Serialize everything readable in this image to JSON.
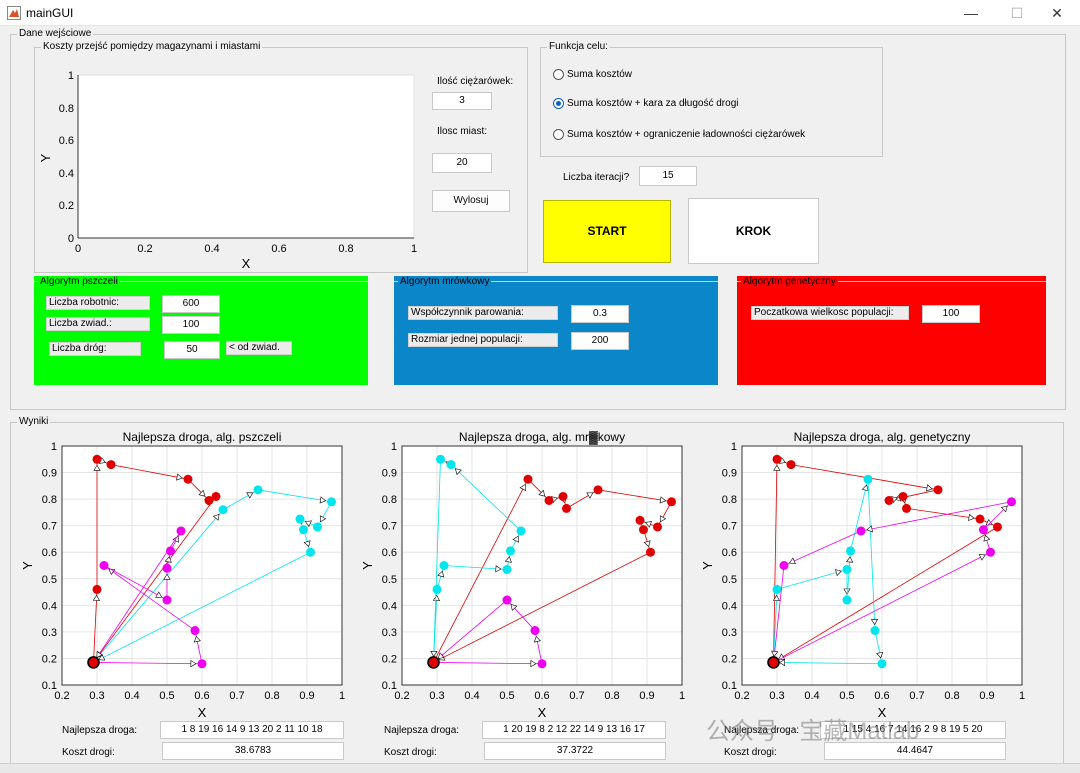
{
  "window": {
    "title": "mainGUI",
    "minimize": "—",
    "maximize": "☐",
    "close": "✕"
  },
  "input_group": {
    "title": "Dane wejściowe",
    "cost_panel": {
      "title": "Koszty przejść pomiędzy magazynami i miastami",
      "xlabel": "X",
      "ylabel": "Y",
      "xticks": [
        "0",
        "0.2",
        "0.4",
        "0.6",
        "0.8",
        "1"
      ],
      "yticks": [
        "0",
        "0.2",
        "0.4",
        "0.6",
        "0.8",
        "1"
      ]
    },
    "trucks_label": "Ilość ciężarówek:",
    "trucks_value": "3",
    "cities_label": "Ilosc miast:",
    "cities_value": "20",
    "draw_button": "Wylosuj",
    "objective": {
      "title": "Funkcja celu:",
      "options": [
        "Suma kosztów",
        "Suma kosztów + kara za długość drogi",
        "Suma kosztów + ograniczenie ładowności ciężarówek"
      ],
      "selected": 1
    },
    "iterations_label": "Liczba iteracji?",
    "iterations_value": "15",
    "start_button": "START",
    "step_button": "KROK"
  },
  "bees": {
    "title": "Algorytm pszczeli",
    "color": "#00ff00",
    "workers_label": "Liczba robotnic:",
    "workers_value": "600",
    "scouts_label": "Liczba zwiad.:",
    "scouts_value": "100",
    "paths_label": "Liczba dróg:",
    "paths_value": "50",
    "paths_note": "< od zwiad."
  },
  "ants": {
    "title": "Algorytm mrówkowy",
    "color": "#0b86c8",
    "evap_label": "Współczynnik parowania:",
    "evap_value": "0.3",
    "pop_label": "Rozmiar jednej populacji:",
    "pop_value": "200"
  },
  "genetic": {
    "title": "Algorytm genetyczny",
    "color": "#ff0000",
    "pop_label": "Poczatkowa wielkosc populacji:",
    "pop_value": "100"
  },
  "results": {
    "title": "Wyniki",
    "best_label": "Najlepsza droga:",
    "cost_label": "Koszt drogi:",
    "charts": [
      {
        "title": "Najlepsza droga, alg. pszczeli",
        "best_path": "1  8  19  16  14   9  13  20   2  11  10  18",
        "cost": "38.6783"
      },
      {
        "title": "Najlepsza droga, alg. mr▓kowy",
        "best_path": "1  20  19   8   2  12  22  14   9  13  16  17",
        "cost": "37.3722"
      },
      {
        "title": "Najlepsza droga, alg. genetyczny",
        "best_path": "1  15   4  16   7  14  16   2   9   8  19   5  20",
        "cost": "44.4647"
      }
    ]
  },
  "watermark": "公众号 · 宝藏Matlab",
  "chart_data": [
    {
      "type": "line",
      "title": "Najlepsza droga, alg. pszczeli",
      "xlabel": "X",
      "ylabel": "Y",
      "xlim": [
        0.2,
        1
      ],
      "ylim": [
        0.1,
        1
      ],
      "grid": true,
      "xticks": [
        0.2,
        0.3,
        0.4,
        0.5,
        0.6,
        0.7,
        0.8,
        0.9,
        1
      ],
      "yticks": [
        0.1,
        0.2,
        0.3,
        0.4,
        0.5,
        0.6,
        0.7,
        0.8,
        0.9,
        1
      ],
      "depot": [
        0.29,
        0.185
      ],
      "series": [
        {
          "color": "#e00000",
          "points": [
            [
              0.29,
              0.185
            ],
            [
              0.3,
              0.46
            ],
            [
              0.3,
              0.95
            ],
            [
              0.34,
              0.93
            ],
            [
              0.56,
              0.875
            ],
            [
              0.62,
              0.795
            ],
            [
              0.64,
              0.81
            ],
            [
              0.29,
              0.185
            ]
          ]
        },
        {
          "color": "#00e5ee",
          "points": [
            [
              0.29,
              0.185
            ],
            [
              0.66,
              0.76
            ],
            [
              0.76,
              0.835
            ],
            [
              0.97,
              0.79
            ],
            [
              0.93,
              0.695
            ],
            [
              0.88,
              0.725
            ],
            [
              0.89,
              0.685
            ],
            [
              0.91,
              0.6
            ],
            [
              0.29,
              0.185
            ]
          ]
        },
        {
          "color": "#ee00ee",
          "points": [
            [
              0.29,
              0.185
            ],
            [
              0.6,
              0.18
            ],
            [
              0.58,
              0.305
            ],
            [
              0.32,
              0.55
            ],
            [
              0.5,
              0.42
            ],
            [
              0.5,
              0.54
            ],
            [
              0.51,
              0.605
            ],
            [
              0.54,
              0.68
            ],
            [
              0.29,
              0.185
            ]
          ]
        }
      ]
    },
    {
      "type": "line",
      "title": "Najlepsza droga, alg. mr▓kowy",
      "xlabel": "X",
      "ylabel": "Y",
      "xlim": [
        0.2,
        1
      ],
      "ylim": [
        0.1,
        1
      ],
      "grid": true,
      "xticks": [
        0.2,
        0.3,
        0.4,
        0.5,
        0.6,
        0.7,
        0.8,
        0.9,
        1
      ],
      "yticks": [
        0.1,
        0.2,
        0.3,
        0.4,
        0.5,
        0.6,
        0.7,
        0.8,
        0.9,
        1
      ],
      "depot": [
        0.29,
        0.185
      ],
      "series": [
        {
          "color": "#e00000",
          "points": [
            [
              0.29,
              0.185
            ],
            [
              0.56,
              0.875
            ],
            [
              0.62,
              0.795
            ],
            [
              0.66,
              0.81
            ],
            [
              0.67,
              0.765
            ],
            [
              0.76,
              0.835
            ],
            [
              0.97,
              0.79
            ],
            [
              0.93,
              0.695
            ],
            [
              0.88,
              0.72
            ],
            [
              0.89,
              0.685
            ],
            [
              0.91,
              0.6
            ],
            [
              0.29,
              0.185
            ]
          ]
        },
        {
          "color": "#00e5ee",
          "points": [
            [
              0.29,
              0.185
            ],
            [
              0.3,
              0.46
            ],
            [
              0.32,
              0.55
            ],
            [
              0.5,
              0.535
            ],
            [
              0.51,
              0.605
            ],
            [
              0.54,
              0.68
            ],
            [
              0.34,
              0.93
            ],
            [
              0.31,
              0.95
            ],
            [
              0.29,
              0.185
            ]
          ]
        },
        {
          "color": "#ee00ee",
          "points": [
            [
              0.29,
              0.185
            ],
            [
              0.6,
              0.18
            ],
            [
              0.58,
              0.305
            ],
            [
              0.5,
              0.42
            ],
            [
              0.29,
              0.185
            ]
          ]
        }
      ]
    },
    {
      "type": "line",
      "title": "Najlepsza droga, alg. genetyczny",
      "xlabel": "X",
      "ylabel": "Y",
      "xlim": [
        0.2,
        1
      ],
      "ylim": [
        0.1,
        1
      ],
      "grid": true,
      "xticks": [
        0.2,
        0.3,
        0.4,
        0.5,
        0.6,
        0.7,
        0.8,
        0.9,
        1
      ],
      "yticks": [
        0.1,
        0.2,
        0.3,
        0.4,
        0.5,
        0.6,
        0.7,
        0.8,
        0.9,
        1
      ],
      "depot": [
        0.29,
        0.185
      ],
      "series": [
        {
          "color": "#e00000",
          "points": [
            [
              0.29,
              0.185
            ],
            [
              0.3,
              0.95
            ],
            [
              0.34,
              0.93
            ],
            [
              0.76,
              0.835
            ],
            [
              0.62,
              0.795
            ],
            [
              0.66,
              0.81
            ],
            [
              0.67,
              0.765
            ],
            [
              0.88,
              0.725
            ],
            [
              0.93,
              0.695
            ],
            [
              0.29,
              0.185
            ]
          ]
        },
        {
          "color": "#00e5ee",
          "points": [
            [
              0.29,
              0.185
            ],
            [
              0.3,
              0.46
            ],
            [
              0.5,
              0.535
            ],
            [
              0.5,
              0.42
            ],
            [
              0.51,
              0.605
            ],
            [
              0.56,
              0.875
            ],
            [
              0.58,
              0.305
            ],
            [
              0.6,
              0.18
            ],
            [
              0.29,
              0.185
            ]
          ]
        },
        {
          "color": "#ee00ee",
          "points": [
            [
              0.29,
              0.185
            ],
            [
              0.91,
              0.6
            ],
            [
              0.89,
              0.685
            ],
            [
              0.97,
              0.79
            ],
            [
              0.54,
              0.68
            ],
            [
              0.32,
              0.55
            ],
            [
              0.29,
              0.185
            ]
          ]
        }
      ]
    }
  ]
}
